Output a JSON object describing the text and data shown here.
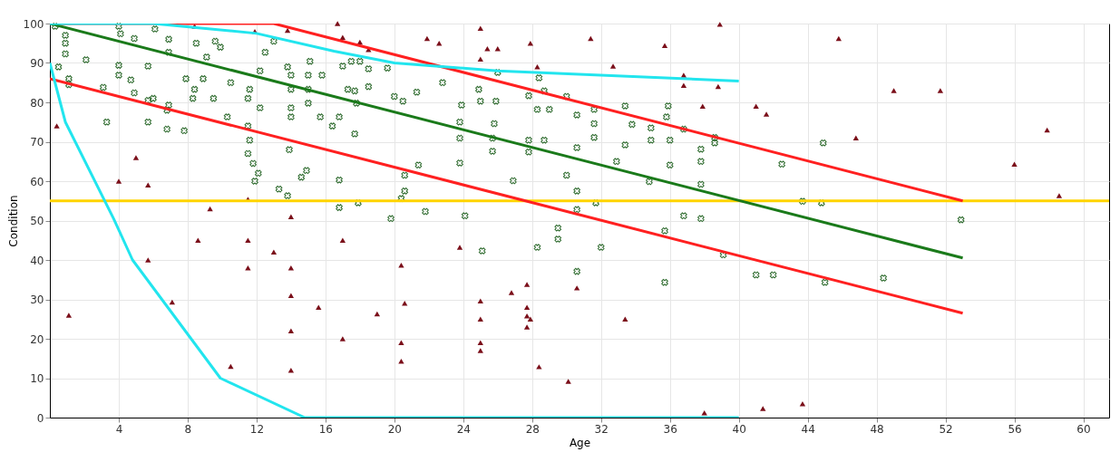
{
  "chart_data": {
    "type": "scatter",
    "xlabel": "Age",
    "ylabel": "Condition",
    "xlim": [
      0,
      61.5
    ],
    "ylim": [
      0,
      100
    ],
    "xticks": [
      4,
      8,
      12,
      16,
      20,
      24,
      28,
      32,
      36,
      40,
      44,
      48,
      52,
      56,
      60
    ],
    "yticks": [
      0,
      10,
      20,
      30,
      40,
      50,
      60,
      70,
      80,
      90,
      100
    ],
    "grid": true,
    "ref_lines": [
      {
        "axis": "y",
        "value": 55,
        "color": "#ffd400"
      }
    ],
    "series": [
      {
        "marker": "cross",
        "color": "#2e6b2e",
        "x": [
          0.3,
          0.9,
          0.9,
          0.9,
          0.5,
          1.1,
          1.1,
          2.1,
          3.1,
          3.3,
          4,
          4,
          4,
          4.1,
          4.7,
          4.9,
          4.9,
          5.7,
          5.7,
          5.7,
          6,
          6.1,
          6.8,
          6.8,
          6.9,
          6.9,
          6.9,
          7.8,
          7.9,
          8.3,
          8.4,
          8.9,
          8.5,
          9.1,
          9.5,
          9.6,
          9.9,
          10.3,
          10.5,
          11.5,
          11.5,
          11.5,
          11.6,
          11.8,
          11.9,
          12.1,
          11.6,
          12.2,
          12.2,
          12.5,
          13,
          13.3,
          13.8,
          14,
          14,
          14,
          13.8,
          13.9,
          14,
          14.6,
          14.9,
          15,
          15,
          15,
          15.1,
          15.7,
          15.8,
          16.4,
          16.8,
          16.8,
          16.8,
          17,
          17.3,
          17.5,
          17.7,
          17.8,
          18,
          18.5,
          18.5,
          19.6,
          17.7,
          20,
          20.5,
          21.3,
          22.8,
          23.9,
          24.9,
          25,
          25.9,
          26,
          23.8,
          25.8,
          23.8,
          25.7,
          23.8,
          25.7,
          27.8,
          28.4,
          28.7,
          28.3,
          29,
          27.8,
          27.8,
          28.7,
          30,
          30.6,
          30.6,
          30.6,
          30.6,
          31.6,
          31.6,
          31.6,
          31.7,
          30,
          32.9,
          33.4,
          33.4,
          33.8,
          34.9,
          34.9,
          35.9,
          35.8,
          36,
          36,
          34.8,
          36.8,
          37.8,
          37.8,
          37.8,
          37.8,
          36.8,
          38.6,
          26.9,
          20.6,
          20.6,
          21.4,
          21.8,
          19.8,
          24.1,
          17.9,
          20.4,
          38.6,
          44.9,
          42.5,
          43.7,
          44.8,
          52.9,
          39.1,
          41,
          42,
          45,
          48.4,
          25.1,
          28.3,
          29.5,
          29.5,
          32,
          30.6,
          35.7,
          35.7
        ],
        "values": [
          99.3,
          97,
          95,
          92.3,
          89,
          84.5,
          86,
          90.8,
          83.8,
          75,
          86.9,
          89.4,
          99.3,
          97.4,
          85.7,
          82.4,
          96.2,
          75,
          80.5,
          89.2,
          81,
          98.6,
          78,
          73.2,
          79.3,
          96,
          92.7,
          72.8,
          86,
          81,
          83.3,
          86,
          95,
          91.5,
          81,
          95.5,
          94,
          76.3,
          85,
          74,
          67,
          81,
          83.3,
          64.5,
          60,
          62,
          70.4,
          88,
          78.6,
          92.7,
          95.5,
          58,
          56.3,
          83.3,
          78.6,
          86.9,
          89,
          68,
          76.3,
          61,
          62.7,
          83.3,
          86.9,
          79.8,
          90.4,
          76.3,
          86.9,
          74,
          53.3,
          60.3,
          76.3,
          89.2,
          83.3,
          90.4,
          72,
          79.8,
          90.4,
          88.5,
          84,
          88.7,
          82.9,
          81.5,
          80.3,
          82.6,
          85,
          79.3,
          83.3,
          80.3,
          80.3,
          87.6,
          75,
          74.6,
          70.9,
          70.9,
          64.6,
          67.6,
          81.7,
          86.2,
          82.9,
          78.2,
          78.2,
          70.4,
          67.4,
          70.4,
          81.5,
          76.8,
          68.5,
          57.5,
          52.8,
          78.2,
          74.6,
          71.1,
          54.5,
          61.5,
          65,
          79.1,
          69.2,
          74.4,
          73.5,
          70.4,
          79.1,
          76.3,
          70.4,
          64.1,
          59.9,
          73.2,
          68.1,
          65,
          59.2,
          50.5,
          51.2,
          71.1,
          60.1,
          61.5,
          57.5,
          64.1,
          52.3,
          50.5,
          51.2,
          54.5,
          55.6,
          69.7,
          69.7,
          64.3,
          54.9,
          54.5,
          50.2,
          41.3,
          36.2,
          36.2,
          34.3,
          35.4,
          42.3,
          43.2,
          48.1,
          45.3,
          43.2,
          37.1,
          47.4,
          34.3
        ]
      },
      {
        "marker": "triangle",
        "color": "#7b0f1a",
        "x": [
          0.4,
          1.1,
          5,
          4,
          5.7,
          9.3,
          11.5,
          14,
          5.7,
          7.1,
          8.6,
          11.5,
          11.5,
          13,
          14,
          14,
          15.6,
          14,
          14,
          10.5,
          17,
          17,
          19,
          20.4,
          20.6,
          20.4,
          20.4,
          23.8,
          25,
          25,
          25,
          25,
          26.8,
          27.7,
          27.7,
          27.7,
          27.9,
          27.7,
          28.4,
          30.1,
          30.6,
          33.4,
          38,
          41.4,
          43.7,
          16.7,
          17,
          13.8,
          11.9,
          8.4,
          18,
          18.5,
          21.9,
          22.6,
          25,
          25,
          25.4,
          26,
          27.9,
          28.3,
          31.4,
          32.7,
          35.7,
          36.8,
          36.8,
          37.9,
          38.8,
          38.9,
          45.8,
          41,
          41.6,
          46.8,
          49,
          51.7,
          57.9,
          56,
          58.6
        ],
        "values": [
          74,
          26,
          66,
          60,
          59,
          53,
          55.4,
          51,
          40,
          29.3,
          45,
          45,
          38,
          42,
          38,
          31,
          28,
          22,
          12,
          13,
          45,
          20,
          26.3,
          38.7,
          29,
          19,
          14.3,
          43.2,
          29.6,
          25,
          19,
          17,
          31.7,
          33.8,
          28,
          25.8,
          25,
          23,
          12.9,
          9.2,
          32.9,
          25,
          1.2,
          2.3,
          3.5,
          100,
          96.5,
          98.3,
          98,
          99.3,
          95.3,
          93.4,
          96.2,
          95,
          98.8,
          91,
          93.6,
          93.6,
          95,
          89,
          96.2,
          89.2,
          94.4,
          86.9,
          84.3,
          79,
          84,
          99.8,
          96.2,
          79,
          77,
          71,
          83,
          83,
          73,
          64.3,
          56.3
        ]
      },
      {
        "type": "line",
        "color": "#ff2020",
        "x": [
          0,
          13,
          53
        ],
        "values": [
          100,
          100,
          55
        ]
      },
      {
        "type": "line",
        "color": "#1a7a1a",
        "x": [
          0,
          53
        ],
        "values": [
          100,
          40.5
        ]
      },
      {
        "type": "line",
        "color": "#ff2020",
        "x": [
          0,
          53
        ],
        "values": [
          86,
          26.5
        ]
      },
      {
        "type": "line",
        "color": "#22e5ee",
        "x": [
          0,
          6,
          12,
          16.5,
          20,
          26,
          40
        ],
        "values": [
          100,
          100,
          97.5,
          93,
          90,
          88,
          85.4
        ]
      },
      {
        "type": "line",
        "color": "#22e5ee",
        "x": [
          0,
          0.9,
          3.7,
          4.8,
          9.9,
          14.8,
          40
        ],
        "values": [
          90,
          75,
          50.5,
          40,
          10,
          0,
          0
        ]
      }
    ]
  }
}
